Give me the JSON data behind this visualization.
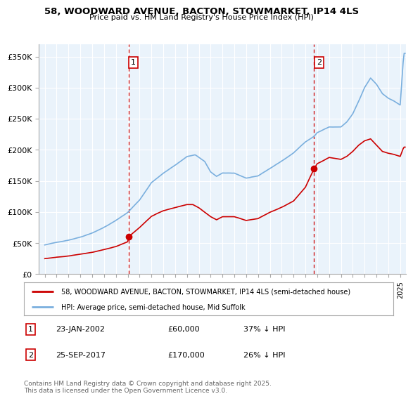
{
  "title_line1": "58, WOODWARD AVENUE, BACTON, STOWMARKET, IP14 4LS",
  "title_line2": "Price paid vs. HM Land Registry's House Price Index (HPI)",
  "y_ticks": [
    0,
    50000,
    100000,
    150000,
    200000,
    250000,
    300000,
    350000
  ],
  "y_tick_labels": [
    "£0",
    "£50K",
    "£100K",
    "£150K",
    "£200K",
    "£250K",
    "£300K",
    "£350K"
  ],
  "ylim": [
    0,
    370000
  ],
  "xlim_start": 1994.5,
  "xlim_end": 2025.5,
  "hpi_color": "#7aafde",
  "price_color": "#cc0000",
  "vline_color": "#cc0000",
  "grid_color": "#c8d8e8",
  "bg_color": "#ffffff",
  "plot_bg_color": "#eaf3fb",
  "sale1_year": 2002.07,
  "sale1_price": 60000,
  "sale1_label": "1",
  "sale2_year": 2017.73,
  "sale2_price": 170000,
  "sale2_label": "2",
  "legend_line1": "58, WOODWARD AVENUE, BACTON, STOWMARKET, IP14 4LS (semi-detached house)",
  "legend_line2": "HPI: Average price, semi-detached house, Mid Suffolk",
  "footnote": "Contains HM Land Registry data © Crown copyright and database right 2025.\nThis data is licensed under the Open Government Licence v3.0."
}
